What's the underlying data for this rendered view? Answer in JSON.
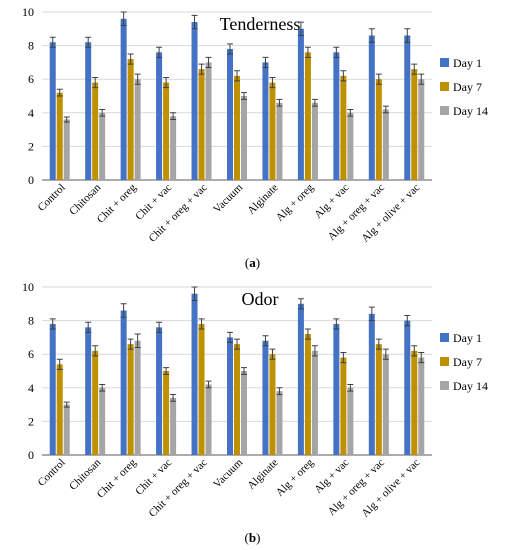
{
  "colors": {
    "day1": "#4472C4",
    "day7": "#BF9000",
    "day14": "#A5A5A5",
    "grid": "#d9d9d9",
    "axis": "#595959"
  },
  "chart_data": [
    {
      "type": "bar",
      "title": "Tenderness",
      "caption": "a",
      "categories": [
        "Control",
        "Chitosan",
        "Chit + oreg",
        "Chit + vac",
        "Chit + oreg + vac",
        "Vacuum",
        "Alginate",
        "Alg + oreg",
        "Alg + vac",
        "Alg + oreg + vac",
        "Alg + olive + vac"
      ],
      "ylim": [
        0,
        10
      ],
      "yticks": [
        "0",
        "2",
        "4",
        "6",
        "8",
        "10"
      ],
      "grid": true,
      "legend_position": "right",
      "error_bars": true,
      "series": [
        {
          "name": "Day 1",
          "values": [
            8.2,
            8.2,
            9.6,
            7.6,
            9.4,
            7.8,
            7.0,
            9.0,
            7.6,
            8.6,
            8.6
          ],
          "errors": [
            0.3,
            0.3,
            0.4,
            0.3,
            0.4,
            0.3,
            0.3,
            0.4,
            0.3,
            0.4,
            0.4
          ]
        },
        {
          "name": "Day 7",
          "values": [
            5.2,
            5.8,
            7.2,
            5.8,
            6.6,
            6.2,
            5.8,
            7.6,
            6.2,
            6.0,
            6.6
          ],
          "errors": [
            0.2,
            0.3,
            0.3,
            0.3,
            0.3,
            0.3,
            0.3,
            0.3,
            0.3,
            0.3,
            0.3
          ]
        },
        {
          "name": "Day 14",
          "values": [
            3.6,
            4.0,
            6.0,
            3.8,
            7.0,
            5.0,
            4.6,
            4.6,
            4.0,
            4.2,
            6.0
          ],
          "errors": [
            0.15,
            0.2,
            0.3,
            0.2,
            0.3,
            0.2,
            0.2,
            0.2,
            0.2,
            0.2,
            0.3
          ]
        }
      ]
    },
    {
      "type": "bar",
      "title": "Odor",
      "caption": "b",
      "categories": [
        "Control",
        "Chitosan",
        "Chit + oreg",
        "Chit + vac",
        "Chit + oreg + vac",
        "Vacuum",
        "Alginate",
        "Alg + oreg",
        "Alg + vac",
        "Alg + oreg + vac",
        "Alg + olive + vac"
      ],
      "ylim": [
        0,
        10
      ],
      "yticks": [
        "0",
        "2",
        "4",
        "6",
        "8",
        "10"
      ],
      "grid": true,
      "legend_position": "right",
      "error_bars": true,
      "series": [
        {
          "name": "Day 1",
          "values": [
            7.8,
            7.6,
            8.6,
            7.6,
            9.6,
            7.0,
            6.8,
            9.0,
            7.8,
            8.4,
            8.0
          ],
          "errors": [
            0.3,
            0.3,
            0.4,
            0.3,
            0.4,
            0.3,
            0.3,
            0.3,
            0.3,
            0.4,
            0.3
          ]
        },
        {
          "name": "Day 7",
          "values": [
            5.4,
            6.2,
            6.6,
            5.0,
            7.8,
            6.6,
            6.0,
            7.2,
            5.8,
            6.6,
            6.2
          ],
          "errors": [
            0.3,
            0.3,
            0.3,
            0.2,
            0.3,
            0.3,
            0.3,
            0.3,
            0.3,
            0.3,
            0.3
          ]
        },
        {
          "name": "Day 14",
          "values": [
            3.0,
            4.0,
            6.8,
            3.4,
            4.2,
            5.0,
            3.8,
            6.2,
            4.0,
            6.0,
            5.8
          ],
          "errors": [
            0.15,
            0.2,
            0.4,
            0.2,
            0.2,
            0.2,
            0.2,
            0.3,
            0.2,
            0.3,
            0.3
          ]
        }
      ]
    }
  ]
}
